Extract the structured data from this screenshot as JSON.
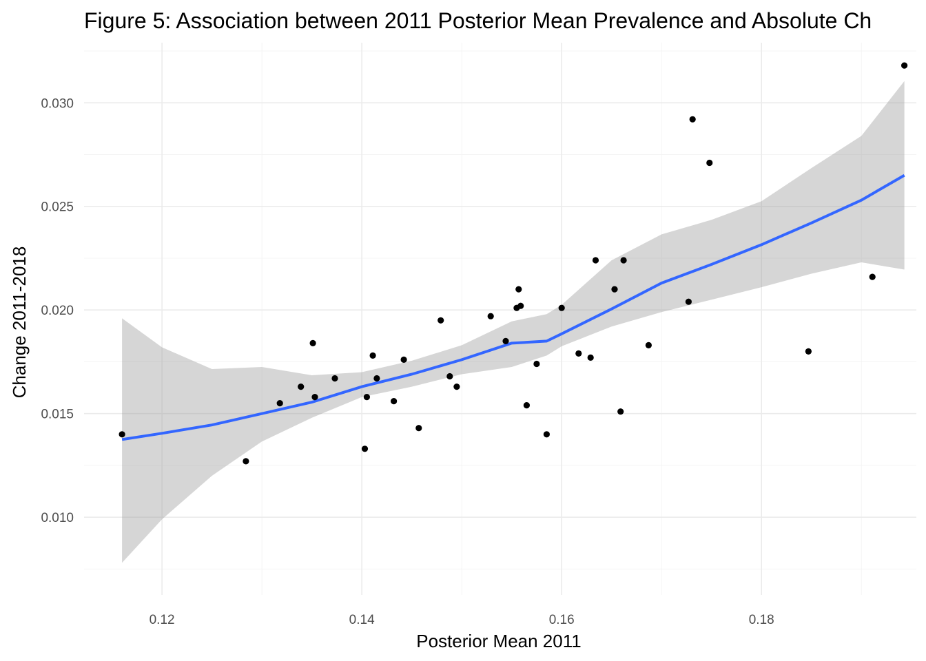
{
  "chart_data": {
    "type": "scatter",
    "title": "Figure 5: Association between 2011 Posterior Mean Prevalence and Absolute Ch",
    "xlabel": "Posterior Mean 2011",
    "ylabel": "Change 2011-2018",
    "xlim": [
      0.1122,
      0.1955
    ],
    "ylim": [
      0.00625,
      0.0329
    ],
    "x_ticks": [
      0.12,
      0.14,
      0.16,
      0.18
    ],
    "x_tick_labels": [
      "0.12",
      "0.14",
      "0.16",
      "0.18"
    ],
    "y_ticks": [
      0.01,
      0.015,
      0.02,
      0.025,
      0.03
    ],
    "y_tick_labels": [
      "0.010",
      "0.015",
      "0.020",
      "0.025",
      "0.030"
    ],
    "grid": true,
    "legend": "none",
    "colors": {
      "points": "#000000",
      "smooth_line": "#3366FF",
      "ribbon": "#999999",
      "grid": "#ebebeb"
    },
    "points": [
      {
        "x": 0.116,
        "y": 0.014
      },
      {
        "x": 0.1284,
        "y": 0.0127
      },
      {
        "x": 0.1318,
        "y": 0.0155
      },
      {
        "x": 0.1339,
        "y": 0.0163
      },
      {
        "x": 0.1351,
        "y": 0.0184
      },
      {
        "x": 0.1353,
        "y": 0.0158
      },
      {
        "x": 0.1373,
        "y": 0.0167
      },
      {
        "x": 0.1403,
        "y": 0.0133
      },
      {
        "x": 0.1405,
        "y": 0.0158
      },
      {
        "x": 0.1411,
        "y": 0.0178
      },
      {
        "x": 0.1415,
        "y": 0.0167
      },
      {
        "x": 0.1432,
        "y": 0.0156
      },
      {
        "x": 0.1442,
        "y": 0.0176
      },
      {
        "x": 0.1457,
        "y": 0.0143
      },
      {
        "x": 0.1479,
        "y": 0.0195
      },
      {
        "x": 0.1488,
        "y": 0.0168
      },
      {
        "x": 0.1495,
        "y": 0.0163
      },
      {
        "x": 0.1529,
        "y": 0.0197
      },
      {
        "x": 0.1544,
        "y": 0.0185
      },
      {
        "x": 0.1555,
        "y": 0.0201
      },
      {
        "x": 0.1557,
        "y": 0.021
      },
      {
        "x": 0.1559,
        "y": 0.0202
      },
      {
        "x": 0.1565,
        "y": 0.0154
      },
      {
        "x": 0.1575,
        "y": 0.0174
      },
      {
        "x": 0.1585,
        "y": 0.014
      },
      {
        "x": 0.16,
        "y": 0.0201
      },
      {
        "x": 0.1617,
        "y": 0.0179
      },
      {
        "x": 0.1629,
        "y": 0.0177
      },
      {
        "x": 0.1634,
        "y": 0.0224
      },
      {
        "x": 0.1653,
        "y": 0.021
      },
      {
        "x": 0.1659,
        "y": 0.0151
      },
      {
        "x": 0.1662,
        "y": 0.0224
      },
      {
        "x": 0.1687,
        "y": 0.0183
      },
      {
        "x": 0.1727,
        "y": 0.0204
      },
      {
        "x": 0.1731,
        "y": 0.0292
      },
      {
        "x": 0.1748,
        "y": 0.0271
      },
      {
        "x": 0.1847,
        "y": 0.018
      },
      {
        "x": 0.1911,
        "y": 0.0216
      },
      {
        "x": 0.1943,
        "y": 0.0318
      }
    ],
    "smooth": {
      "x": [
        0.116,
        0.12,
        0.125,
        0.13,
        0.135,
        0.14,
        0.145,
        0.15,
        0.155,
        0.1585,
        0.16,
        0.165,
        0.17,
        0.175,
        0.18,
        0.185,
        0.19,
        0.1943
      ],
      "y": [
        0.01375,
        0.01405,
        0.01445,
        0.015,
        0.01555,
        0.0163,
        0.0169,
        0.0176,
        0.0184,
        0.0185,
        0.01885,
        0.02005,
        0.0213,
        0.0222,
        0.02315,
        0.0242,
        0.0253,
        0.0265
      ],
      "lower": [
        0.0078,
        0.0099,
        0.012,
        0.01365,
        0.0148,
        0.0158,
        0.0163,
        0.0169,
        0.01725,
        0.0178,
        0.01825,
        0.0192,
        0.0199,
        0.0205,
        0.0211,
        0.02175,
        0.0223,
        0.02195
      ],
      "upper": [
        0.0196,
        0.0182,
        0.01715,
        0.01725,
        0.01685,
        0.017,
        0.01755,
        0.0183,
        0.01945,
        0.0198,
        0.02025,
        0.0224,
        0.02365,
        0.02435,
        0.02525,
        0.02685,
        0.0284,
        0.03105
      ]
    }
  }
}
